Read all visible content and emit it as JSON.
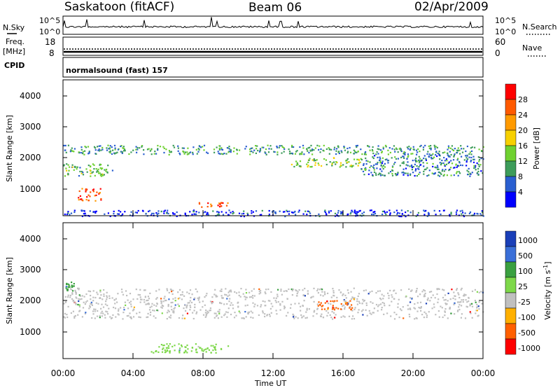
{
  "header": {
    "station": "Saskatoon (fitACF)",
    "beam": "Beam 06",
    "date": "02/Apr/2009"
  },
  "noise_panel": {
    "left_label": "N.Sky",
    "right_label": "N.Search",
    "left_ticks": [
      "10^5",
      "10^0"
    ],
    "right_ticks": [
      "10^5",
      "10^0"
    ]
  },
  "freq_panel": {
    "left_label_line1": "Freq.",
    "left_label_line2": "[MHz]",
    "right_label": "Nave",
    "left_ticks": [
      "18",
      "8"
    ],
    "right_ticks": [
      "60",
      "0"
    ]
  },
  "cpid_panel": {
    "label": "CPID",
    "program": "normalsound (fast) 157"
  },
  "power_panel": {
    "ylabel": "Slant Range [km]",
    "yticks": [
      "4000",
      "3000",
      "2000",
      "1000"
    ],
    "colorbar_label": "Power [dB]",
    "colorbar_ticks": [
      "28",
      "24",
      "20",
      "16",
      "12",
      "8",
      "4"
    ],
    "colors": [
      "#ff0000",
      "#ff5a00",
      "#ff9a00",
      "#f7d000",
      "#6fd130",
      "#3d9c5a",
      "#2a5fd0",
      "#0000ff"
    ]
  },
  "velocity_panel": {
    "ylabel": "Slant Range [km]",
    "yticks": [
      "4000",
      "3000",
      "2000",
      "1000"
    ],
    "colorbar_label": "Velocity [m s",
    "colorbar_label_sup": "-1",
    "colorbar_label_end": "]",
    "colorbar_ticks": [
      "1000",
      "500",
      "100",
      "25",
      "-25",
      "-100",
      "-500",
      "-1000"
    ],
    "colors": [
      "#1a3fb8",
      "#3a6fd8",
      "#3aa040",
      "#7ed84a",
      "#c0c0c0",
      "#ffb000",
      "#ff6000",
      "#ff0000"
    ]
  },
  "time_axis": {
    "xlabel": "Time UT",
    "ticks": [
      "00:00",
      "04:00",
      "08:00",
      "12:00",
      "16:00",
      "20:00",
      "00:00"
    ]
  },
  "chart_data": {
    "type": "heatmap",
    "x_unit": "hours UT",
    "x_range": [
      0,
      24
    ],
    "y_unit": "km",
    "y_range": [
      200,
      4600
    ],
    "power_bands": [
      {
        "x": [
          0,
          24
        ],
        "y": [
          2200,
          2500
        ],
        "power_db": 12
      },
      {
        "x": [
          0,
          2.8
        ],
        "y": [
          1500,
          1900
        ],
        "power_db": 14
      },
      {
        "x": [
          0.8,
          2.2
        ],
        "y": [
          700,
          1100
        ],
        "power_db": 28
      },
      {
        "x": [
          7.6,
          9.4
        ],
        "y": [
          500,
          650
        ],
        "power_db": 28
      },
      {
        "x": [
          13,
          17
        ],
        "y": [
          1800,
          2100
        ],
        "power_db": 16
      },
      {
        "x": [
          17,
          24
        ],
        "y": [
          1500,
          2200
        ],
        "power_db": 10
      },
      {
        "x": [
          0,
          24
        ],
        "y": [
          200,
          400
        ],
        "power_db": 6
      }
    ],
    "velocity_bands": [
      {
        "x": [
          0,
          24
        ],
        "y": [
          1500,
          2500
        ],
        "velocity": 0
      },
      {
        "x": [
          14.5,
          16.5
        ],
        "y": [
          1800,
          2100
        ],
        "velocity": -300
      },
      {
        "x": [
          0.1,
          0.6
        ],
        "y": [
          2400,
          2700
        ],
        "velocity": 300
      },
      {
        "x": [
          5,
          9.5
        ],
        "y": [
          400,
          700
        ],
        "velocity": 50
      }
    ]
  }
}
